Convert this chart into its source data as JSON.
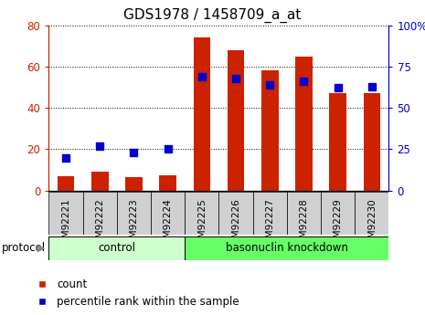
{
  "title": "GDS1978 / 1458709_a_at",
  "samples": [
    "GSM92221",
    "GSM92222",
    "GSM92223",
    "GSM92224",
    "GSM92225",
    "GSM92226",
    "GSM92227",
    "GSM92228",
    "GSM92229",
    "GSM92230"
  ],
  "count_values": [
    7,
    9,
    6.5,
    7.5,
    74,
    68,
    58,
    65,
    47,
    47
  ],
  "percentile_values": [
    20,
    27,
    23,
    25,
    69,
    68,
    64,
    66,
    62,
    63
  ],
  "groups": [
    {
      "label": "control",
      "start": 0,
      "end": 4,
      "color": "#ccffcc"
    },
    {
      "label": "basonuclin knockdown",
      "start": 4,
      "end": 10,
      "color": "#66ff66"
    }
  ],
  "left_ylim": [
    0,
    80
  ],
  "right_ylim": [
    0,
    100
  ],
  "left_yticks": [
    0,
    20,
    40,
    60,
    80
  ],
  "right_yticks": [
    0,
    25,
    50,
    75,
    100
  ],
  "right_yticklabels": [
    "0",
    "25",
    "50",
    "75",
    "100%"
  ],
  "bar_color": "#cc2200",
  "dot_color": "#0000cc",
  "bar_width": 0.5,
  "dot_size": 35,
  "grid_color": "#000000",
  "bg_color": "#ffffff",
  "tick_label_color_left": "#cc2200",
  "tick_label_color_right": "#0000cc",
  "title_fontsize": 11,
  "axis_fontsize": 8.5,
  "sample_fontsize": 7.5,
  "legend_fontsize": 8.5,
  "group_label_fontsize": 8.5,
  "protocol_fontsize": 8.5,
  "control_color_light": "#ccffcc",
  "control_color_dark": "#66ff66",
  "gray_box_color": "#d0d0d0"
}
